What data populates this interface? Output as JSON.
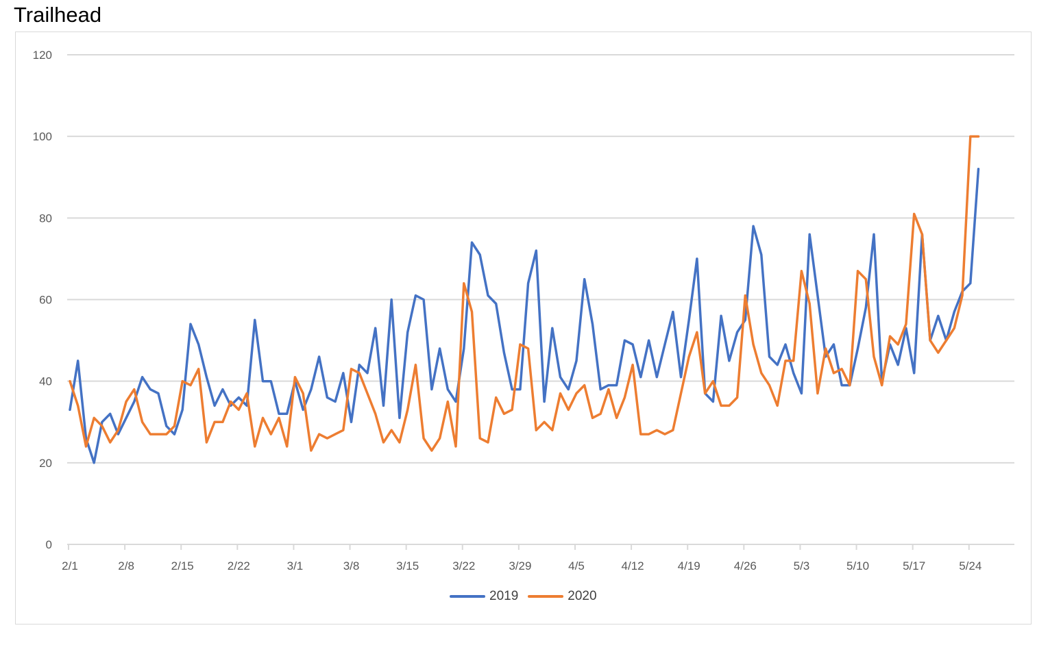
{
  "colors": {
    "series_2019": "#4472c4",
    "series_2020": "#ed7d31",
    "grid": "#d9d9d9",
    "tick_text": "#595959"
  },
  "chart_data": {
    "type": "line",
    "title": "Trailhead",
    "xlabel": "",
    "ylabel": "",
    "ylim": [
      0,
      120
    ],
    "yticks": [
      "0",
      "20",
      "40",
      "60",
      "80",
      "100",
      "120"
    ],
    "xtick_labels": [
      "2/1",
      "2/8",
      "2/15",
      "2/22",
      "3/1",
      "3/8",
      "3/15",
      "3/22",
      "3/29",
      "4/5",
      "4/12",
      "4/19",
      "4/26",
      "5/3",
      "5/10",
      "5/17",
      "5/24"
    ],
    "x_start": "2/1",
    "x_step_days": 1,
    "grid": true,
    "legend_position": "bottom",
    "series": [
      {
        "name": "2019",
        "values": [
          33,
          45,
          26,
          20,
          30,
          32,
          27,
          31,
          35,
          41,
          38,
          37,
          29,
          27,
          33,
          54,
          49,
          41,
          34,
          38,
          34,
          36,
          34,
          55,
          40,
          40,
          32,
          32,
          40,
          33,
          38,
          46,
          36,
          35,
          42,
          30,
          44,
          42,
          53,
          34,
          60,
          31,
          52,
          61,
          60,
          38,
          48,
          38,
          35,
          48,
          74,
          71,
          61,
          59,
          47,
          38,
          38,
          64,
          72,
          35,
          53,
          41,
          38,
          45,
          65,
          54,
          38,
          39,
          39,
          50,
          49,
          41,
          50,
          41,
          49,
          57,
          41,
          55,
          70,
          37,
          35,
          56,
          45,
          52,
          55,
          78,
          71,
          46,
          44,
          49,
          42,
          37,
          76,
          61,
          46,
          49,
          39,
          39,
          48,
          58,
          76,
          40,
          49,
          44,
          53,
          42,
          76,
          50,
          56,
          50,
          57,
          62,
          64,
          92
        ]
      },
      {
        "name": "2020",
        "values": [
          40,
          34,
          24,
          31,
          29,
          25,
          28,
          35,
          38,
          30,
          27,
          27,
          27,
          29,
          40,
          39,
          43,
          25,
          30,
          30,
          35,
          33,
          37,
          24,
          31,
          27,
          31,
          24,
          41,
          37,
          23,
          27,
          26,
          27,
          28,
          43,
          42,
          37,
          32,
          25,
          28,
          25,
          33,
          44,
          26,
          23,
          26,
          35,
          24,
          64,
          57,
          26,
          25,
          36,
          32,
          33,
          49,
          48,
          28,
          30,
          28,
          37,
          33,
          37,
          39,
          31,
          32,
          38,
          31,
          36,
          44,
          27,
          27,
          28,
          27,
          28,
          37,
          46,
          52,
          37,
          40,
          34,
          34,
          36,
          61,
          49,
          42,
          39,
          34,
          45,
          45,
          67,
          59,
          37,
          48,
          42,
          43,
          39,
          67,
          65,
          46,
          39,
          51,
          49,
          54,
          81,
          76,
          50,
          47,
          50,
          53,
          61,
          100,
          100
        ]
      }
    ]
  }
}
